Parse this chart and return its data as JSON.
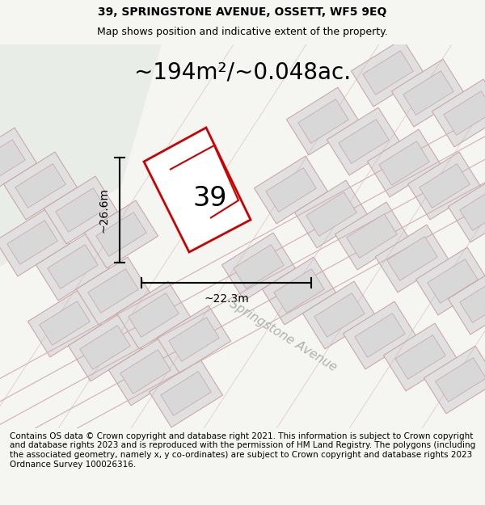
{
  "title_line1": "39, SPRINGSTONE AVENUE, OSSETT, WF5 9EQ",
  "title_line2": "Map shows position and indicative extent of the property.",
  "area_text": "~194m²/~0.048ac.",
  "label_number": "39",
  "dim_width": "~22.3m",
  "dim_height": "~26.6m",
  "road_label": "Springstone Avenue",
  "footer_text": "Contains OS data © Crown copyright and database right 2021. This information is subject to Crown copyright and database rights 2023 and is reproduced with the permission of HM Land Registry. The polygons (including the associated geometry, namely x, y co-ordinates) are subject to Crown copyright and database rights 2023 Ordnance Survey 100026316.",
  "bg_color": "#f0f2ee",
  "map_bg": "#f5f5f0",
  "plot_fill": "#ffffff",
  "plot_outline": "#cc0000",
  "neighbor_fill": "#e0e0e0",
  "neighbor_outline": "#c8a0a0",
  "road_line_color": "#d0b0b0",
  "green_area": "#e8ede8",
  "title_fontsize": 10,
  "subtitle_fontsize": 9,
  "area_fontsize": 20,
  "number_fontsize": 24,
  "dim_fontsize": 10,
  "road_fontsize": 11,
  "footer_fontsize": 7.5
}
